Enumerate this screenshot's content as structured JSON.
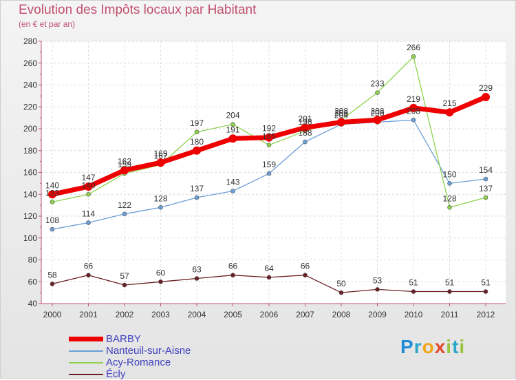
{
  "header": {
    "title": "Evolution des Impôts locaux par Habitant",
    "subtitle": "(en € et par an)"
  },
  "logo": {
    "text": "Proxiti",
    "letters": [
      "P",
      "r",
      "o",
      "x",
      "i",
      "t",
      "i"
    ],
    "colors": [
      "#1f8dd6",
      "#2aa8c9",
      "#f2a51c",
      "#e24a2c",
      "#9ac33f",
      "#2aa8c9",
      "#9ac33f"
    ]
  },
  "chart_data": {
    "type": "line",
    "title": "Evolution des Impôts locaux par Habitant",
    "subtitle": "(en € et par an)",
    "xlabel": "",
    "ylabel": "",
    "categories": [
      "2000",
      "2001",
      "2002",
      "2003",
      "2004",
      "2005",
      "2006",
      "2007",
      "2008",
      "2009",
      "2010",
      "2011",
      "2012"
    ],
    "ylim": [
      40,
      280
    ],
    "yticks": [
      40,
      60,
      80,
      100,
      120,
      140,
      160,
      180,
      200,
      220,
      240,
      260,
      280
    ],
    "grid": true,
    "legend_position": "bottom-left",
    "series": [
      {
        "name": "Écly",
        "color": "#6b1f23",
        "width": 1.3,
        "values": [
          58,
          66,
          57,
          60,
          63,
          66,
          64,
          66,
          50,
          53,
          51,
          51,
          51
        ]
      },
      {
        "name": "Nanteuil-sur-Aisne",
        "color": "#6a9fd8",
        "width": 1.3,
        "values": [
          108,
          114,
          122,
          128,
          137,
          143,
          159,
          188,
          204,
          206,
          208,
          150,
          154
        ]
      },
      {
        "name": "Acy-Romance",
        "color": "#8ed24c",
        "width": 1.3,
        "values": [
          133,
          140,
          159,
          167,
          197,
          204,
          185,
          198,
          208,
          233,
          266,
          128,
          137
        ]
      },
      {
        "name": "BARBY",
        "color": "#ee0000",
        "width": 7,
        "values": [
          140,
          147,
          162,
          169,
          180,
          191,
          192,
          201,
          206,
          208,
          219,
          215,
          229
        ]
      }
    ],
    "legend": [
      "BARBY",
      "Nanteuil-sur-Aisne",
      "Acy-Romance",
      "Écly"
    ]
  }
}
